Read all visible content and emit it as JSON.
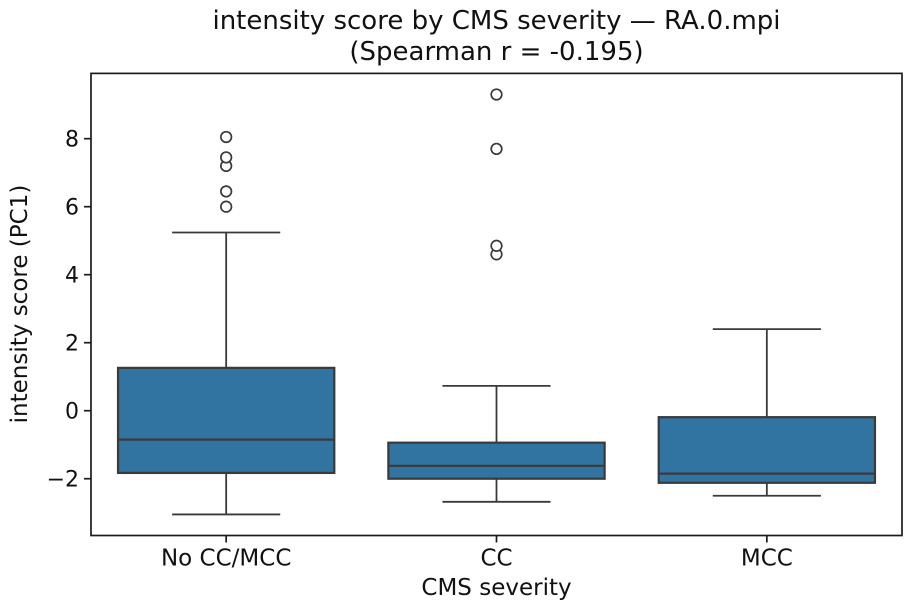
{
  "chart_data": {
    "type": "box",
    "title": "intensity score by CMS severity — RA.0.mpi",
    "subtitle": "(Spearman r = -0.195)",
    "xlabel": "CMS severity",
    "ylabel": "intensity score (PC1)",
    "categories": [
      "No CC/MCC",
      "CC",
      "MCC"
    ],
    "series": [
      {
        "name": "No CC/MCC",
        "whisker_low": -3.05,
        "q1": -1.83,
        "median": -0.85,
        "q3": 1.26,
        "whisker_high": 5.24,
        "outliers": [
          6.0,
          6.45,
          7.2,
          7.45,
          8.05
        ]
      },
      {
        "name": "CC",
        "whisker_low": -2.68,
        "q1": -2.0,
        "median": -1.62,
        "q3": -0.94,
        "whisker_high": 0.73,
        "outliers": [
          4.6,
          4.85,
          7.7,
          9.3
        ]
      },
      {
        "name": "MCC",
        "whisker_low": -2.5,
        "q1": -2.12,
        "median": -1.85,
        "q3": -0.19,
        "whisker_high": 2.4,
        "outliers": []
      }
    ],
    "yticks": [
      {
        "value": 8,
        "label": "8"
      },
      {
        "value": 6,
        "label": "6"
      },
      {
        "value": 4,
        "label": "4"
      },
      {
        "value": 2,
        "label": "2"
      },
      {
        "value": 0,
        "label": "0"
      },
      {
        "value": -2,
        "label": "−2"
      }
    ],
    "ylim": [
      -3.67,
      9.92
    ],
    "grid": false,
    "legend": false,
    "colors": {
      "box_fill": "#3274a1",
      "box_line": "#3a3a3a",
      "spine": "#1c1c1c",
      "text": "#111111"
    }
  }
}
